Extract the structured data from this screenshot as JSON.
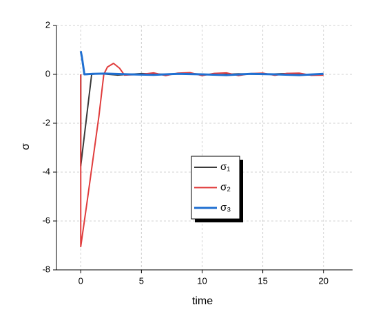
{
  "chart_data": {
    "type": "line",
    "xlabel": "time",
    "ylabel": "σ",
    "xlim": [
      -2,
      22.4
    ],
    "ylim": [
      -8,
      2
    ],
    "xticks": [
      0,
      5,
      10,
      15,
      20
    ],
    "yticks": [
      -8,
      -6,
      -4,
      -2,
      0,
      2
    ],
    "grid": true,
    "legend": "center",
    "series": [
      {
        "name": "σ₁",
        "color": "#3a3a3a",
        "x": [
          0,
          0,
          0.9,
          1.5,
          3,
          5,
          7,
          9,
          11,
          13,
          15,
          17,
          19,
          20
        ],
        "values": [
          0,
          -3.75,
          0,
          0.03,
          -0.03,
          0.03,
          0,
          0.03,
          -0.02,
          0.02,
          0,
          0.03,
          -0.03,
          0
        ]
      },
      {
        "name": "σ₂",
        "color": "#e03c3c",
        "x": [
          0,
          0,
          0.5,
          1,
          1.5,
          1.9,
          2.2,
          2.7,
          3.2,
          3.6,
          5,
          6,
          7,
          8,
          9,
          10,
          11,
          12,
          13,
          14,
          15,
          16,
          17,
          18,
          19,
          20
        ],
        "values": [
          0,
          -7.05,
          -5.3,
          -3.5,
          -1.7,
          0,
          0.3,
          0.45,
          0.25,
          -0.03,
          0,
          0.06,
          -0.05,
          0.05,
          0.07,
          -0.05,
          0.04,
          0.06,
          -0.05,
          0.03,
          0.05,
          -0.04,
          0.04,
          0.05,
          -0.04,
          -0.03
        ]
      },
      {
        "name": "σ₃",
        "color": "#1f6fd1",
        "x": [
          0,
          0.1,
          0.3,
          1,
          2,
          4,
          6,
          8,
          10,
          12,
          14,
          16,
          18,
          20
        ],
        "values": [
          0.95,
          0.7,
          0,
          0.02,
          0.03,
          0,
          -0.02,
          0.02,
          0,
          -0.03,
          0.02,
          0,
          -0.03,
          0.02
        ]
      }
    ]
  }
}
